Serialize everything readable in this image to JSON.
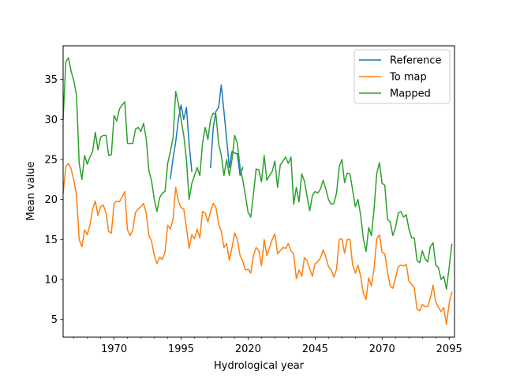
{
  "chart_data": {
    "type": "line",
    "title": "",
    "xlabel": "Hydrological year",
    "ylabel": "Mean value",
    "xlim": [
      1951,
      2097
    ],
    "ylim": [
      2.8,
      39.2
    ],
    "xticks": [
      1970,
      1995,
      2020,
      2045,
      2070,
      2095
    ],
    "yticks": [
      5,
      10,
      15,
      20,
      25,
      30,
      35
    ],
    "minor_x_interval": 5,
    "grid": false,
    "legend_position": "top-right",
    "series": [
      {
        "name": "Reference",
        "color": "#1f77b4",
        "points": [
          [
            1991,
            22.6
          ],
          [
            1992,
            25.1
          ],
          [
            1993,
            27.2
          ],
          [
            1994,
            30.0
          ],
          [
            1995,
            31.8
          ],
          [
            1996,
            30.0
          ],
          [
            1997,
            31.5
          ],
          [
            1998,
            27.0
          ],
          [
            1999,
            23.5
          ],
          [
            null,
            null
          ],
          [
            2006,
            24.0
          ],
          [
            2007,
            29.0
          ],
          [
            2008,
            31.0
          ],
          [
            2009,
            31.5
          ],
          [
            2010,
            34.3
          ],
          [
            2011,
            31.0
          ],
          [
            2012,
            27.5
          ],
          [
            2013,
            24.0
          ],
          [
            2014,
            26.0
          ],
          [
            2015,
            25.8
          ],
          [
            2016,
            25.7
          ],
          [
            2017,
            23.0
          ],
          [
            2018,
            24.0
          ]
        ]
      },
      {
        "name": "To map",
        "color": "#ff7f0e",
        "points": [
          [
            1951,
            20.8
          ],
          [
            1952,
            24.1
          ],
          [
            1953,
            24.5
          ],
          [
            1954,
            23.8
          ],
          [
            1955,
            22.4
          ],
          [
            1956,
            20.5
          ],
          [
            1957,
            15.0
          ],
          [
            1958,
            14.1
          ],
          [
            1959,
            16.2
          ],
          [
            1960,
            15.6
          ],
          [
            1961,
            16.8
          ],
          [
            1962,
            18.8
          ],
          [
            1963,
            19.8
          ],
          [
            1964,
            18.0
          ],
          [
            1965,
            19.1
          ],
          [
            1966,
            19.3
          ],
          [
            1967,
            18.3
          ],
          [
            1968,
            16.0
          ],
          [
            1969,
            15.8
          ],
          [
            1970,
            19.5
          ],
          [
            1971,
            19.8
          ],
          [
            1972,
            19.7
          ],
          [
            1973,
            20.3
          ],
          [
            1974,
            21.0
          ],
          [
            1975,
            16.2
          ],
          [
            1976,
            15.5
          ],
          [
            1977,
            16.2
          ],
          [
            1978,
            18.4
          ],
          [
            1979,
            18.8
          ],
          [
            1980,
            19.1
          ],
          [
            1981,
            19.5
          ],
          [
            1982,
            18.3
          ],
          [
            1983,
            15.5
          ],
          [
            1984,
            14.8
          ],
          [
            1985,
            13.0
          ],
          [
            1986,
            12.0
          ],
          [
            1987,
            12.8
          ],
          [
            1988,
            12.5
          ],
          [
            1989,
            13.4
          ],
          [
            1990,
            16.8
          ],
          [
            1991,
            16.3
          ],
          [
            1992,
            17.5
          ],
          [
            1993,
            21.5
          ],
          [
            1994,
            19.8
          ],
          [
            1995,
            19.0
          ],
          [
            1996,
            18.8
          ],
          [
            1997,
            16.5
          ],
          [
            1998,
            13.9
          ],
          [
            1999,
            15.6
          ],
          [
            2000,
            15.1
          ],
          [
            2001,
            16.3
          ],
          [
            2002,
            15.2
          ],
          [
            2003,
            18.5
          ],
          [
            2004,
            18.3
          ],
          [
            2005,
            17.2
          ],
          [
            2006,
            18.5
          ],
          [
            2007,
            19.5
          ],
          [
            2008,
            19.0
          ],
          [
            2009,
            17.0
          ],
          [
            2010,
            16.0
          ],
          [
            2011,
            14.0
          ],
          [
            2012,
            14.5
          ],
          [
            2013,
            12.4
          ],
          [
            2014,
            14.0
          ],
          [
            2015,
            15.8
          ],
          [
            2016,
            15.0
          ],
          [
            2017,
            13.0
          ],
          [
            2018,
            12.3
          ],
          [
            2019,
            11.2
          ],
          [
            2020,
            11.3
          ],
          [
            2021,
            10.8
          ],
          [
            2022,
            13.0
          ],
          [
            2023,
            14.0
          ],
          [
            2024,
            13.6
          ],
          [
            2025,
            11.7
          ],
          [
            2026,
            15.0
          ],
          [
            2027,
            13.0
          ],
          [
            2028,
            14.0
          ],
          [
            2029,
            15.0
          ],
          [
            2030,
            15.7
          ],
          [
            2031,
            13.2
          ],
          [
            2032,
            13.6
          ],
          [
            2033,
            14.0
          ],
          [
            2034,
            13.9
          ],
          [
            2035,
            14.5
          ],
          [
            2036,
            13.6
          ],
          [
            2037,
            13.2
          ],
          [
            2038,
            10.1
          ],
          [
            2039,
            11.2
          ],
          [
            2040,
            10.4
          ],
          [
            2041,
            12.7
          ],
          [
            2042,
            12.4
          ],
          [
            2043,
            11.3
          ],
          [
            2044,
            10.4
          ],
          [
            2045,
            12.0
          ],
          [
            2046,
            12.2
          ],
          [
            2047,
            12.7
          ],
          [
            2048,
            13.7
          ],
          [
            2049,
            12.8
          ],
          [
            2050,
            11.6
          ],
          [
            2051,
            11.2
          ],
          [
            2052,
            10.3
          ],
          [
            2053,
            11.3
          ],
          [
            2054,
            15.0
          ],
          [
            2055,
            15.1
          ],
          [
            2056,
            13.3
          ],
          [
            2057,
            15.0
          ],
          [
            2058,
            15.0
          ],
          [
            2059,
            11.8
          ],
          [
            2060,
            10.8
          ],
          [
            2061,
            11.8
          ],
          [
            2062,
            10.4
          ],
          [
            2063,
            8.3
          ],
          [
            2064,
            7.5
          ],
          [
            2065,
            10.2
          ],
          [
            2066,
            9.2
          ],
          [
            2067,
            11.4
          ],
          [
            2068,
            15.1
          ],
          [
            2069,
            15.6
          ],
          [
            2070,
            13.4
          ],
          [
            2071,
            13.2
          ],
          [
            2072,
            11.0
          ],
          [
            2073,
            9.2
          ],
          [
            2074,
            8.9
          ],
          [
            2075,
            10.2
          ],
          [
            2076,
            11.6
          ],
          [
            2077,
            11.8
          ],
          [
            2078,
            11.7
          ],
          [
            2079,
            11.9
          ],
          [
            2080,
            9.8
          ],
          [
            2081,
            9.4
          ],
          [
            2082,
            9.0
          ],
          [
            2083,
            6.3
          ],
          [
            2084,
            6.1
          ],
          [
            2085,
            6.9
          ],
          [
            2086,
            6.6
          ],
          [
            2087,
            6.6
          ],
          [
            2088,
            7.7
          ],
          [
            2089,
            9.3
          ],
          [
            2090,
            7.2
          ],
          [
            2091,
            6.5
          ],
          [
            2092,
            6.0
          ],
          [
            2093,
            6.5
          ],
          [
            2094,
            4.4
          ],
          [
            2095,
            7.0
          ],
          [
            2096,
            8.4
          ]
        ]
      },
      {
        "name": "Mapped",
        "color": "#2ca02c",
        "points": [
          [
            1951,
            30.0
          ],
          [
            1952,
            37.2
          ],
          [
            1953,
            37.7
          ],
          [
            1954,
            36.0
          ],
          [
            1955,
            34.8
          ],
          [
            1956,
            33.0
          ],
          [
            1957,
            24.5
          ],
          [
            1958,
            22.5
          ],
          [
            1959,
            25.5
          ],
          [
            1960,
            24.4
          ],
          [
            1961,
            25.3
          ],
          [
            1962,
            26.0
          ],
          [
            1963,
            28.4
          ],
          [
            1964,
            26.2
          ],
          [
            1965,
            27.8
          ],
          [
            1966,
            28.0
          ],
          [
            1967,
            28.0
          ],
          [
            1968,
            25.5
          ],
          [
            1969,
            25.6
          ],
          [
            1970,
            30.5
          ],
          [
            1971,
            29.8
          ],
          [
            1972,
            31.3
          ],
          [
            1973,
            31.8
          ],
          [
            1974,
            32.2
          ],
          [
            1975,
            27.0
          ],
          [
            1976,
            27.0
          ],
          [
            1977,
            27.0
          ],
          [
            1978,
            28.8
          ],
          [
            1979,
            29.0
          ],
          [
            1980,
            28.5
          ],
          [
            1981,
            29.5
          ],
          [
            1982,
            27.6
          ],
          [
            1983,
            23.6
          ],
          [
            1984,
            22.3
          ],
          [
            1985,
            20.0
          ],
          [
            1986,
            18.5
          ],
          [
            1987,
            20.2
          ],
          [
            1988,
            20.8
          ],
          [
            1989,
            21.0
          ],
          [
            1990,
            24.5
          ],
          [
            1991,
            26.0
          ],
          [
            1992,
            27.7
          ],
          [
            1993,
            33.5
          ],
          [
            1994,
            32.0
          ],
          [
            1995,
            30.0
          ],
          [
            1996,
            28.0
          ],
          [
            1997,
            25.0
          ],
          [
            1998,
            20.0
          ],
          [
            1999,
            22.0
          ],
          [
            2000,
            23.0
          ],
          [
            2001,
            24.0
          ],
          [
            2002,
            23.0
          ],
          [
            2003,
            27.0
          ],
          [
            2004,
            29.0
          ],
          [
            2005,
            27.5
          ],
          [
            2006,
            30.0
          ],
          [
            2007,
            30.8
          ],
          [
            2008,
            30.6
          ],
          [
            2009,
            27.0
          ],
          [
            2010,
            25.5
          ],
          [
            2011,
            23.0
          ],
          [
            2012,
            25.0
          ],
          [
            2013,
            23.0
          ],
          [
            2014,
            25.0
          ],
          [
            2015,
            28.0
          ],
          [
            2016,
            27.0
          ],
          [
            2017,
            24.0
          ],
          [
            2018,
            22.5
          ],
          [
            2019,
            20.5
          ],
          [
            2020,
            18.4
          ],
          [
            2021,
            17.8
          ],
          [
            2022,
            20.7
          ],
          [
            2023,
            23.8
          ],
          [
            2024,
            23.7
          ],
          [
            2025,
            22.2
          ],
          [
            2026,
            25.5
          ],
          [
            2027,
            22.4
          ],
          [
            2028,
            23.0
          ],
          [
            2029,
            23.5
          ],
          [
            2030,
            24.8
          ],
          [
            2031,
            21.5
          ],
          [
            2032,
            24.3
          ],
          [
            2033,
            24.8
          ],
          [
            2034,
            25.3
          ],
          [
            2035,
            24.5
          ],
          [
            2036,
            25.3
          ],
          [
            2037,
            19.4
          ],
          [
            2038,
            21.5
          ],
          [
            2039,
            19.7
          ],
          [
            2040,
            23.2
          ],
          [
            2041,
            22.3
          ],
          [
            2042,
            20.4
          ],
          [
            2043,
            18.6
          ],
          [
            2044,
            20.5
          ],
          [
            2045,
            21.0
          ],
          [
            2046,
            20.8
          ],
          [
            2047,
            21.3
          ],
          [
            2048,
            22.4
          ],
          [
            2049,
            21.3
          ],
          [
            2050,
            20.0
          ],
          [
            2051,
            19.4
          ],
          [
            2052,
            19.5
          ],
          [
            2053,
            20.8
          ],
          [
            2054,
            24.1
          ],
          [
            2055,
            25.0
          ],
          [
            2056,
            22.1
          ],
          [
            2057,
            23.3
          ],
          [
            2058,
            23.2
          ],
          [
            2059,
            21.2
          ],
          [
            2060,
            19.1
          ],
          [
            2061,
            20.0
          ],
          [
            2062,
            18.0
          ],
          [
            2063,
            15.1
          ],
          [
            2064,
            13.5
          ],
          [
            2065,
            16.5
          ],
          [
            2066,
            15.5
          ],
          [
            2067,
            18.8
          ],
          [
            2068,
            23.3
          ],
          [
            2069,
            24.6
          ],
          [
            2070,
            22.0
          ],
          [
            2071,
            21.8
          ],
          [
            2072,
            17.5
          ],
          [
            2073,
            17.2
          ],
          [
            2074,
            15.5
          ],
          [
            2075,
            16.5
          ],
          [
            2076,
            18.3
          ],
          [
            2077,
            18.5
          ],
          [
            2078,
            17.8
          ],
          [
            2079,
            18.1
          ],
          [
            2080,
            16.3
          ],
          [
            2081,
            15.2
          ],
          [
            2082,
            15.2
          ],
          [
            2083,
            12.4
          ],
          [
            2084,
            12.1
          ],
          [
            2085,
            13.6
          ],
          [
            2086,
            12.6
          ],
          [
            2087,
            12.2
          ],
          [
            2088,
            14.1
          ],
          [
            2089,
            14.6
          ],
          [
            2090,
            11.8
          ],
          [
            2091,
            11.5
          ],
          [
            2092,
            10.0
          ],
          [
            2093,
            10.4
          ],
          [
            2094,
            8.8
          ],
          [
            2095,
            11.5
          ],
          [
            2096,
            14.4
          ]
        ]
      }
    ]
  }
}
